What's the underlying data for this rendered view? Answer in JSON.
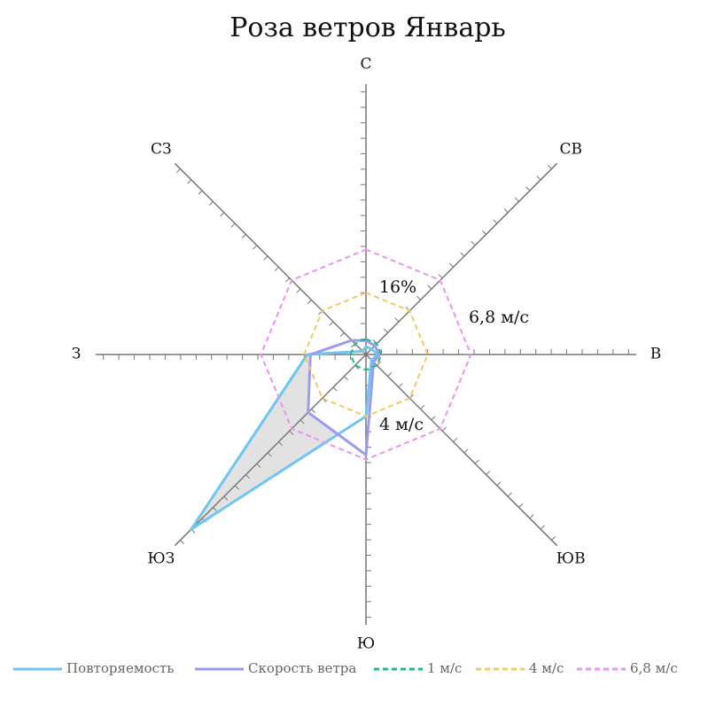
{
  "chart_data": {
    "type": "radar",
    "title": "Роза ветров Январь",
    "categories": [
      "С",
      "СВ",
      "В",
      "ЮВ",
      "Ю",
      "ЮЗ",
      "З",
      "СЗ"
    ],
    "rlim": [
      0,
      17.5
    ],
    "rticks": [
      1,
      2,
      3,
      4,
      5,
      6,
      7,
      8,
      9,
      10,
      11,
      12,
      13,
      14,
      15,
      16,
      17
    ],
    "series": [
      {
        "name": "Повторяемость",
        "color": "#6ec6f0",
        "fill": "#e2e2e2",
        "dashed": false,
        "values": [
          0.5,
          0.5,
          0.8,
          0.5,
          4,
          16,
          3.8,
          0.3
        ]
      },
      {
        "name": "Скорость ветра",
        "color": "#9b9bf0",
        "fill": "#ffffff",
        "dashed": false,
        "values": [
          0.9,
          0.8,
          0.9,
          0.7,
          6.5,
          5.3,
          3.6,
          1.3
        ]
      },
      {
        "name": "1 м/с",
        "color": "#20b890",
        "dashed": true,
        "values": [
          1,
          1,
          1,
          1,
          1,
          1,
          1,
          1
        ]
      },
      {
        "name": "4 м/с",
        "color": "#f5c860",
        "dashed": true,
        "values": [
          4,
          4,
          4,
          4,
          4,
          4,
          4,
          4
        ]
      },
      {
        "name": "6,8 м/с",
        "color": "#f090f0",
        "dashed": true,
        "values": [
          6.8,
          6.8,
          6.8,
          6.8,
          6.8,
          6.8,
          6.8,
          6.8
        ]
      }
    ],
    "annotations": [
      "16%",
      "6,8 м/с",
      "4 м/с"
    ]
  }
}
